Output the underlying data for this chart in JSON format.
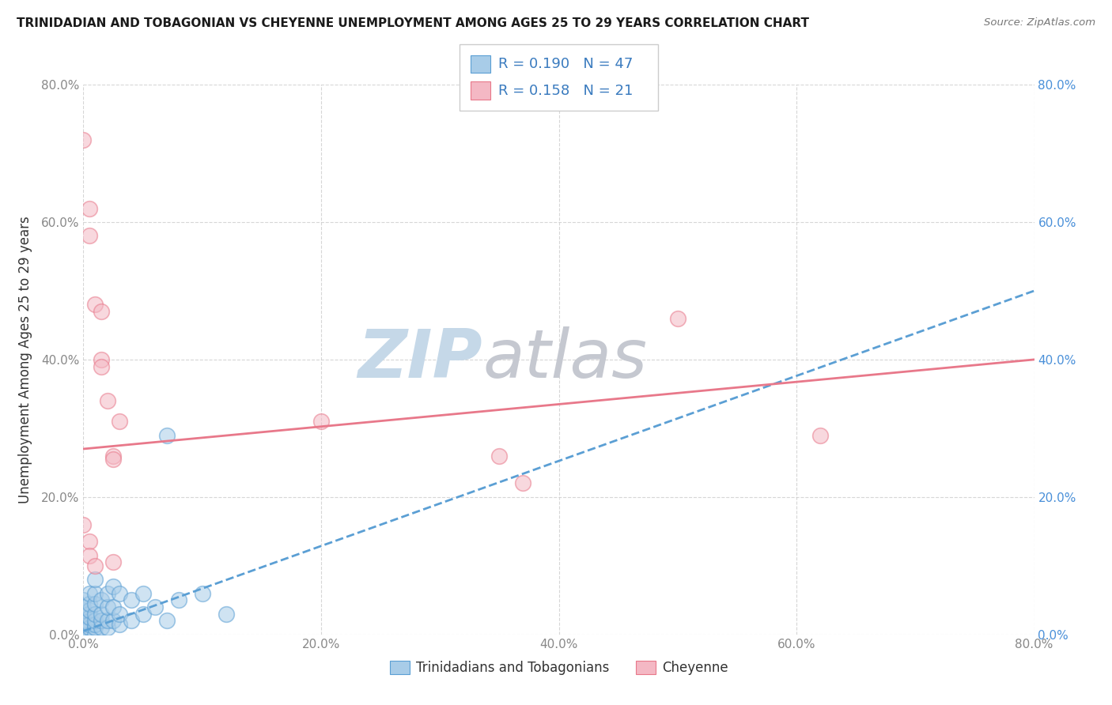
{
  "title": "TRINIDADIAN AND TOBAGONIAN VS CHEYENNE UNEMPLOYMENT AMONG AGES 25 TO 29 YEARS CORRELATION CHART",
  "source": "Source: ZipAtlas.com",
  "ylabel": "Unemployment Among Ages 25 to 29 years",
  "xlim": [
    0.0,
    0.8
  ],
  "ylim": [
    0.0,
    0.8
  ],
  "xticks": [
    0.0,
    0.2,
    0.4,
    0.6,
    0.8
  ],
  "yticks": [
    0.0,
    0.2,
    0.4,
    0.6,
    0.8
  ],
  "legend_labels": [
    "Trinidadians and Tobagonians",
    "Cheyenne"
  ],
  "R_blue": 0.19,
  "N_blue": 47,
  "R_pink": 0.158,
  "N_pink": 21,
  "blue_scatter_color": "#a8cce8",
  "pink_scatter_color": "#f4b8c4",
  "blue_scatter_edge": "#5b9fd4",
  "pink_scatter_edge": "#e8788a",
  "trendline_blue_color": "#5b9fd4",
  "trendline_pink_color": "#e8788a",
  "watermark_zip_color": "#c5d8e8",
  "watermark_atlas_color": "#c5c8d0",
  "background_color": "#ffffff",
  "grid_color": "#cccccc",
  "right_tick_color": "#4a90d9",
  "left_tick_color": "#888888",
  "blue_points": [
    [
      0.0,
      0.0
    ],
    [
      0.0,
      0.01
    ],
    [
      0.0,
      0.015
    ],
    [
      0.0,
      0.02
    ],
    [
      0.0,
      0.03
    ],
    [
      0.0,
      0.035
    ],
    [
      0.0,
      0.04
    ],
    [
      0.0,
      0.05
    ],
    [
      0.005,
      0.0
    ],
    [
      0.005,
      0.01
    ],
    [
      0.005,
      0.015
    ],
    [
      0.005,
      0.025
    ],
    [
      0.005,
      0.035
    ],
    [
      0.005,
      0.045
    ],
    [
      0.005,
      0.06
    ],
    [
      0.01,
      0.0
    ],
    [
      0.01,
      0.01
    ],
    [
      0.01,
      0.015
    ],
    [
      0.01,
      0.02
    ],
    [
      0.01,
      0.03
    ],
    [
      0.01,
      0.045
    ],
    [
      0.01,
      0.06
    ],
    [
      0.01,
      0.08
    ],
    [
      0.015,
      0.01
    ],
    [
      0.015,
      0.02
    ],
    [
      0.015,
      0.03
    ],
    [
      0.015,
      0.05
    ],
    [
      0.02,
      0.01
    ],
    [
      0.02,
      0.02
    ],
    [
      0.02,
      0.04
    ],
    [
      0.02,
      0.06
    ],
    [
      0.025,
      0.02
    ],
    [
      0.025,
      0.04
    ],
    [
      0.025,
      0.07
    ],
    [
      0.03,
      0.015
    ],
    [
      0.03,
      0.03
    ],
    [
      0.03,
      0.06
    ],
    [
      0.04,
      0.02
    ],
    [
      0.04,
      0.05
    ],
    [
      0.05,
      0.03
    ],
    [
      0.05,
      0.06
    ],
    [
      0.06,
      0.04
    ],
    [
      0.07,
      0.02
    ],
    [
      0.07,
      0.29
    ],
    [
      0.08,
      0.05
    ],
    [
      0.1,
      0.06
    ],
    [
      0.12,
      0.03
    ]
  ],
  "pink_points": [
    [
      0.0,
      0.72
    ],
    [
      0.005,
      0.62
    ],
    [
      0.005,
      0.58
    ],
    [
      0.01,
      0.48
    ],
    [
      0.015,
      0.47
    ],
    [
      0.015,
      0.4
    ],
    [
      0.015,
      0.39
    ],
    [
      0.02,
      0.34
    ],
    [
      0.025,
      0.26
    ],
    [
      0.025,
      0.255
    ],
    [
      0.03,
      0.31
    ],
    [
      0.2,
      0.31
    ],
    [
      0.35,
      0.26
    ],
    [
      0.37,
      0.22
    ],
    [
      0.5,
      0.46
    ],
    [
      0.62,
      0.29
    ],
    [
      0.0,
      0.16
    ],
    [
      0.005,
      0.135
    ],
    [
      0.005,
      0.115
    ],
    [
      0.01,
      0.1
    ],
    [
      0.025,
      0.105
    ]
  ],
  "blue_trend_x": [
    0.0,
    0.8
  ],
  "blue_trend_y": [
    0.005,
    0.5
  ],
  "pink_trend_x": [
    0.0,
    0.8
  ],
  "pink_trend_y": [
    0.27,
    0.4
  ]
}
